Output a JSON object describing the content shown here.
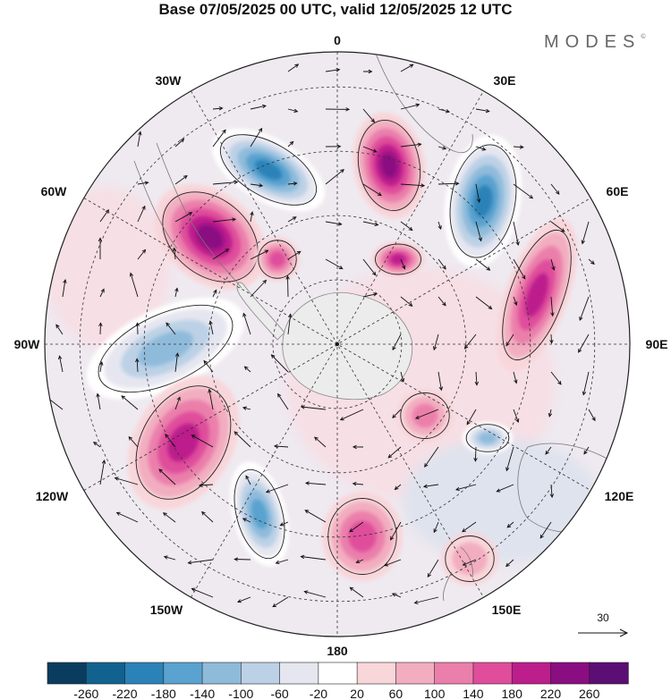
{
  "header": {
    "title": "Base 07/05/2025 00 UTC, valid 12/05/2025 12 UTC",
    "brand": "MODES",
    "brand_mark": "©"
  },
  "map": {
    "projection": "south-polar-stereographic",
    "longitude_labels": {
      "top": "0",
      "bottom": "180",
      "left": "90W",
      "right": "90E",
      "upper_left_1": "30W",
      "upper_left_2": "60W",
      "upper_right_1": "30E",
      "upper_right_2": "60E",
      "lower_left_1": "120W",
      "lower_left_2": "150W",
      "lower_right_1": "120E",
      "lower_right_2": "150E"
    },
    "reference_vector": {
      "value": "30"
    },
    "anomaly_centers": [
      {
        "sign": "negative",
        "lon_region": "0-30W",
        "level": -220
      },
      {
        "sign": "positive",
        "lon_region": "30E",
        "level": 220
      },
      {
        "sign": "negative",
        "lon_region": "60E",
        "level": -220
      },
      {
        "sign": "positive",
        "lon_region": "60W",
        "level": 240
      },
      {
        "sign": "positive",
        "lon_region": "75E",
        "level": 180
      },
      {
        "sign": "negative",
        "lon_region": "90W",
        "level": -140
      },
      {
        "sign": "positive",
        "lon_region": "120W",
        "level": 200
      },
      {
        "sign": "negative",
        "lon_region": "150W-180",
        "level": -180
      },
      {
        "sign": "positive",
        "lon_region": "180",
        "level": 140
      },
      {
        "sign": "positive",
        "lon_region": "0-30E inner",
        "level": 180
      },
      {
        "sign": "positive",
        "lon_region": "60W inner",
        "level": 140
      },
      {
        "sign": "positive",
        "lon_region": "120E",
        "level": 100
      },
      {
        "sign": "negative",
        "lon_region": "120E",
        "level": -140
      },
      {
        "sign": "positive",
        "lon_region": "150E",
        "level": 60
      }
    ]
  },
  "colorbar": {
    "ticks": [
      "-260",
      "-220",
      "-180",
      "-140",
      "-100",
      "-60",
      "-20",
      "20",
      "60",
      "100",
      "140",
      "180",
      "220",
      "260"
    ],
    "colors": [
      "#0a3c5f",
      "#11628f",
      "#2b82b8",
      "#5aa2cf",
      "#8fbbdb",
      "#bcd1e6",
      "#e6e6f0",
      "#ffffff",
      "#f8d6da",
      "#f2aec0",
      "#eb7fab",
      "#df4d9b",
      "#bc1e8c",
      "#8b0d82",
      "#5b0e74"
    ]
  }
}
